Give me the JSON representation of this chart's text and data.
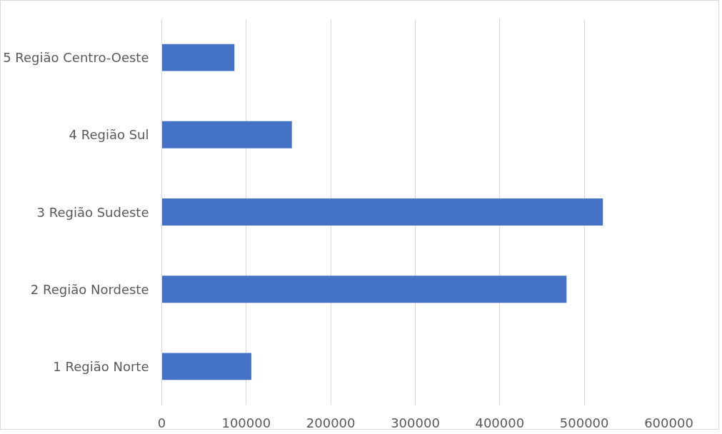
{
  "chart_data": {
    "type": "bar",
    "orientation": "horizontal",
    "categories": [
      "5 Região Centro-Oeste",
      "4 Região Sul",
      "3 Região Sudeste",
      "2 Região Nordeste",
      "1 Região Norte"
    ],
    "values": [
      86000,
      154000,
      522000,
      479000,
      106000
    ],
    "color": "#4472c4",
    "xlim": [
      0,
      600000
    ],
    "xticks": [
      0,
      100000,
      200000,
      300000,
      400000,
      500000,
      600000
    ],
    "grid": "x"
  }
}
